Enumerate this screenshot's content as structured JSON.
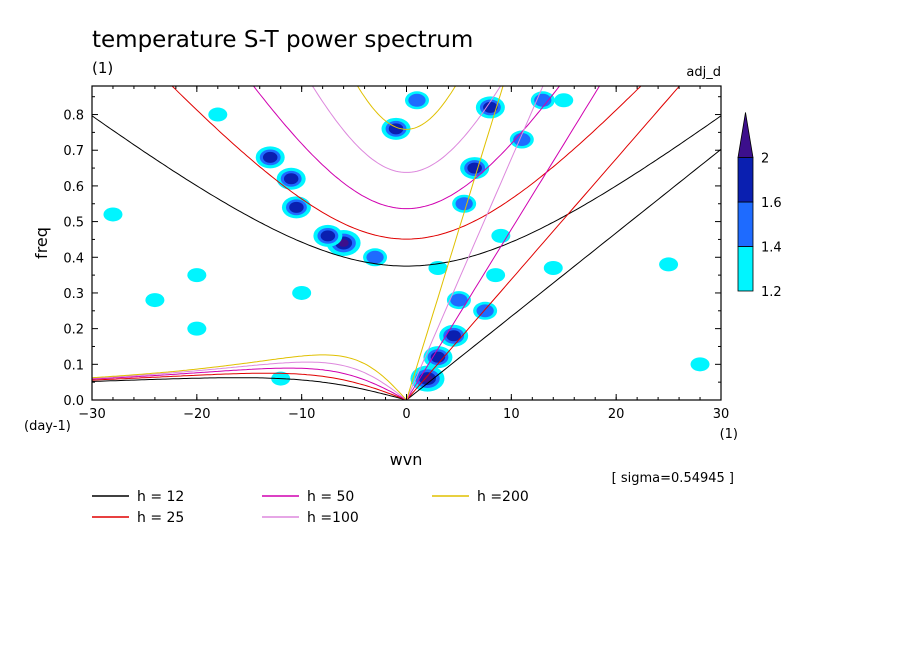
{
  "chart_data": {
    "type": "heatmap",
    "title": "temperature S-T power spectrum",
    "subtitle_left": "(1)",
    "subtitle_right": "adj_d",
    "xlabel": "wvn",
    "ylabel": "freq",
    "x_unit_label": "(1)",
    "y_unit_label": "(day-1)",
    "xlim": [
      -30,
      30
    ],
    "ylim": [
      0,
      0.88
    ],
    "xticks": [
      "-30",
      "-20",
      "-10",
      "0",
      "10",
      "20",
      "30"
    ],
    "yticks": [
      "0.0",
      "0.1",
      "0.2",
      "0.3",
      "0.4",
      "0.5",
      "0.6",
      "0.7",
      "0.8"
    ],
    "sigma_text": "[ sigma=0.54945 ]",
    "colorbar": {
      "levels": [
        "1.2",
        "1.4",
        "1.6",
        "2"
      ],
      "colors": [
        "#00f5ff",
        "#1e6bff",
        "#0a1fb0",
        "#3c0f8c"
      ]
    },
    "dispersion_curves": [
      {
        "label": "h = 12",
        "h": 12,
        "color": "#000000"
      },
      {
        "label": "h = 25",
        "h": 25,
        "color": "#e00000"
      },
      {
        "label": "h = 50",
        "h": 50,
        "color": "#d000b0"
      },
      {
        "label": "h =100",
        "h": 100,
        "color": "#dd88dd"
      },
      {
        "label": "h =200",
        "h": 200,
        "color": "#e0c000"
      }
    ],
    "contour_blobs": [
      {
        "x": -6,
        "y": 0.44,
        "level": 4
      },
      {
        "x": -7.5,
        "y": 0.46,
        "level": 3
      },
      {
        "x": -10.5,
        "y": 0.54,
        "level": 3
      },
      {
        "x": -11,
        "y": 0.62,
        "level": 3
      },
      {
        "x": -13,
        "y": 0.68,
        "level": 3
      },
      {
        "x": -1,
        "y": 0.76,
        "level": 3
      },
      {
        "x": 1,
        "y": 0.84,
        "level": 2
      },
      {
        "x": -3,
        "y": 0.4,
        "level": 2
      },
      {
        "x": 2,
        "y": 0.06,
        "level": 4
      },
      {
        "x": 3,
        "y": 0.12,
        "level": 3
      },
      {
        "x": 4.5,
        "y": 0.18,
        "level": 3
      },
      {
        "x": 5,
        "y": 0.28,
        "level": 2
      },
      {
        "x": 5.5,
        "y": 0.55,
        "level": 2
      },
      {
        "x": 6.5,
        "y": 0.65,
        "level": 3
      },
      {
        "x": 8,
        "y": 0.82,
        "level": 3
      },
      {
        "x": 7.5,
        "y": 0.25,
        "level": 2
      },
      {
        "x": 11,
        "y": 0.73,
        "level": 2
      },
      {
        "x": 13,
        "y": 0.84,
        "level": 2
      },
      {
        "x": 3,
        "y": 0.37,
        "level": 1
      },
      {
        "x": 8.5,
        "y": 0.35,
        "level": 1
      },
      {
        "x": 9,
        "y": 0.46,
        "level": 1
      },
      {
        "x": 15,
        "y": 0.84,
        "level": 1
      },
      {
        "x": 14,
        "y": 0.37,
        "level": 1
      },
      {
        "x": -20,
        "y": 0.35,
        "level": 1
      },
      {
        "x": -24,
        "y": 0.28,
        "level": 1
      },
      {
        "x": -10,
        "y": 0.3,
        "level": 1
      },
      {
        "x": -28,
        "y": 0.52,
        "level": 1
      },
      {
        "x": -18,
        "y": 0.8,
        "level": 1
      },
      {
        "x": -12,
        "y": 0.06,
        "level": 1
      },
      {
        "x": 25,
        "y": 0.38,
        "level": 1
      },
      {
        "x": 28,
        "y": 0.1,
        "level": 1
      },
      {
        "x": -20,
        "y": 0.2,
        "level": 1
      }
    ]
  }
}
